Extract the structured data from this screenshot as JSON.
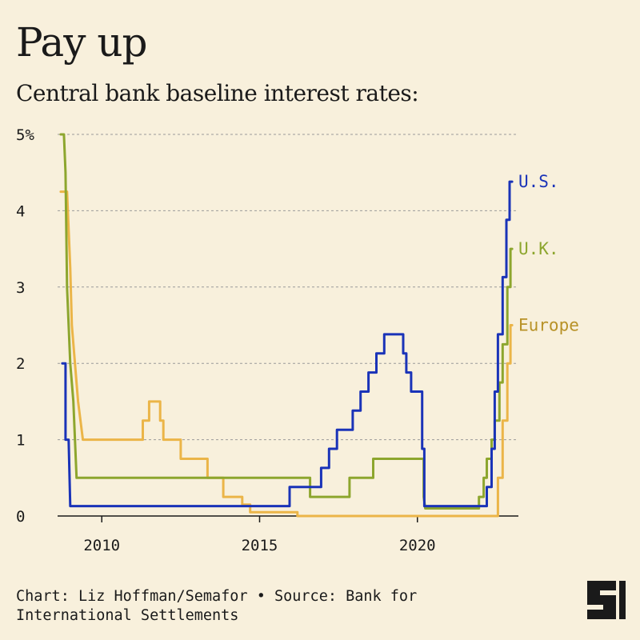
{
  "header": {
    "title": "Pay up",
    "subtitle": "Central bank baseline interest rates:"
  },
  "footer": {
    "credit": "Chart: Liz Hoffman/Semafor • Source: Bank for International Settlements"
  },
  "colors": {
    "background": "#f8f0dc",
    "us": "#1a33b8",
    "uk": "#8da62e",
    "europe": "#ebb548",
    "europe_label": "#b89227",
    "grid": "#9a9a9a",
    "axis": "#1a1a1a"
  },
  "chart_data": {
    "type": "line",
    "title": "Central bank baseline interest rates:",
    "xlabel": "",
    "ylabel": "",
    "xlim": [
      2008.6,
      2023.2
    ],
    "ylim": [
      0,
      5
    ],
    "yticks": [
      {
        "value": 0,
        "label": "0"
      },
      {
        "value": 1,
        "label": "1"
      },
      {
        "value": 2,
        "label": "2"
      },
      {
        "value": 3,
        "label": "3"
      },
      {
        "value": 4,
        "label": "4"
      },
      {
        "value": 5,
        "label": "5%"
      }
    ],
    "xticks": [
      {
        "value": 2010,
        "label": "2010"
      },
      {
        "value": 2015,
        "label": "2015"
      },
      {
        "value": 2020,
        "label": "2020"
      }
    ],
    "grid": true,
    "legend": "inline-right",
    "series": [
      {
        "name": "Europe",
        "color": "#ebb548",
        "label_color": "#b89227",
        "points": [
          [
            2008.7,
            4.25
          ],
          [
            2008.9,
            4.25
          ],
          [
            2008.95,
            3.75
          ],
          [
            2009.0,
            3.25
          ],
          [
            2009.05,
            2.5
          ],
          [
            2009.15,
            2.0
          ],
          [
            2009.25,
            1.5
          ],
          [
            2009.4,
            1.0
          ],
          [
            2011.3,
            1.0
          ],
          [
            2011.3,
            1.25
          ],
          [
            2011.5,
            1.25
          ],
          [
            2011.5,
            1.5
          ],
          [
            2011.85,
            1.5
          ],
          [
            2011.85,
            1.25
          ],
          [
            2011.95,
            1.25
          ],
          [
            2011.95,
            1.0
          ],
          [
            2012.5,
            1.0
          ],
          [
            2012.5,
            0.75
          ],
          [
            2013.35,
            0.75
          ],
          [
            2013.35,
            0.5
          ],
          [
            2013.85,
            0.5
          ],
          [
            2013.85,
            0.25
          ],
          [
            2014.45,
            0.25
          ],
          [
            2014.45,
            0.15
          ],
          [
            2014.7,
            0.15
          ],
          [
            2014.7,
            0.05
          ],
          [
            2016.2,
            0.05
          ],
          [
            2016.2,
            0.0
          ],
          [
            2022.55,
            0.0
          ],
          [
            2022.55,
            0.5
          ],
          [
            2022.7,
            0.5
          ],
          [
            2022.7,
            1.25
          ],
          [
            2022.85,
            1.25
          ],
          [
            2022.85,
            2.0
          ],
          [
            2022.95,
            2.0
          ],
          [
            2022.95,
            2.5
          ],
          [
            2023.0,
            2.5
          ]
        ]
      },
      {
        "name": "U.K.",
        "color": "#8da62e",
        "label_color": "#8da62e",
        "points": [
          [
            2008.7,
            5.0
          ],
          [
            2008.8,
            5.0
          ],
          [
            2008.85,
            4.5
          ],
          [
            2008.9,
            3.0
          ],
          [
            2009.0,
            2.0
          ],
          [
            2009.1,
            1.5
          ],
          [
            2009.15,
            1.0
          ],
          [
            2009.2,
            0.5
          ],
          [
            2016.6,
            0.5
          ],
          [
            2016.6,
            0.25
          ],
          [
            2017.85,
            0.25
          ],
          [
            2017.85,
            0.5
          ],
          [
            2018.6,
            0.5
          ],
          [
            2018.6,
            0.75
          ],
          [
            2020.2,
            0.75
          ],
          [
            2020.2,
            0.25
          ],
          [
            2020.25,
            0.1
          ],
          [
            2021.95,
            0.1
          ],
          [
            2021.95,
            0.25
          ],
          [
            2022.1,
            0.25
          ],
          [
            2022.1,
            0.5
          ],
          [
            2022.2,
            0.5
          ],
          [
            2022.2,
            0.75
          ],
          [
            2022.35,
            0.75
          ],
          [
            2022.35,
            1.0
          ],
          [
            2022.45,
            1.0
          ],
          [
            2022.45,
            1.25
          ],
          [
            2022.6,
            1.25
          ],
          [
            2022.6,
            1.75
          ],
          [
            2022.7,
            1.75
          ],
          [
            2022.7,
            2.25
          ],
          [
            2022.85,
            2.25
          ],
          [
            2022.85,
            3.0
          ],
          [
            2022.95,
            3.0
          ],
          [
            2022.95,
            3.5
          ],
          [
            2023.0,
            3.5
          ]
        ]
      },
      {
        "name": "U.S.",
        "color": "#1a33b8",
        "label_color": "#1a33b8",
        "points": [
          [
            2008.75,
            2.0
          ],
          [
            2008.85,
            2.0
          ],
          [
            2008.85,
            1.0
          ],
          [
            2008.95,
            1.0
          ],
          [
            2009.0,
            0.13
          ],
          [
            2015.95,
            0.13
          ],
          [
            2015.95,
            0.38
          ],
          [
            2016.95,
            0.38
          ],
          [
            2016.95,
            0.63
          ],
          [
            2017.2,
            0.63
          ],
          [
            2017.2,
            0.88
          ],
          [
            2017.45,
            0.88
          ],
          [
            2017.45,
            1.13
          ],
          [
            2017.95,
            1.13
          ],
          [
            2017.95,
            1.38
          ],
          [
            2018.2,
            1.38
          ],
          [
            2018.2,
            1.63
          ],
          [
            2018.45,
            1.63
          ],
          [
            2018.45,
            1.88
          ],
          [
            2018.7,
            1.88
          ],
          [
            2018.7,
            2.13
          ],
          [
            2018.95,
            2.13
          ],
          [
            2018.95,
            2.38
          ],
          [
            2019.55,
            2.38
          ],
          [
            2019.55,
            2.13
          ],
          [
            2019.65,
            2.13
          ],
          [
            2019.65,
            1.88
          ],
          [
            2019.8,
            1.88
          ],
          [
            2019.8,
            1.63
          ],
          [
            2020.15,
            1.63
          ],
          [
            2020.15,
            0.88
          ],
          [
            2020.22,
            0.88
          ],
          [
            2020.22,
            0.13
          ],
          [
            2022.2,
            0.13
          ],
          [
            2022.2,
            0.38
          ],
          [
            2022.35,
            0.38
          ],
          [
            2022.35,
            0.88
          ],
          [
            2022.45,
            0.88
          ],
          [
            2022.45,
            1.63
          ],
          [
            2022.55,
            1.63
          ],
          [
            2022.55,
            2.38
          ],
          [
            2022.7,
            2.38
          ],
          [
            2022.7,
            3.13
          ],
          [
            2022.82,
            3.13
          ],
          [
            2022.82,
            3.88
          ],
          [
            2022.92,
            3.88
          ],
          [
            2022.92,
            4.38
          ],
          [
            2023.0,
            4.38
          ]
        ]
      }
    ]
  }
}
